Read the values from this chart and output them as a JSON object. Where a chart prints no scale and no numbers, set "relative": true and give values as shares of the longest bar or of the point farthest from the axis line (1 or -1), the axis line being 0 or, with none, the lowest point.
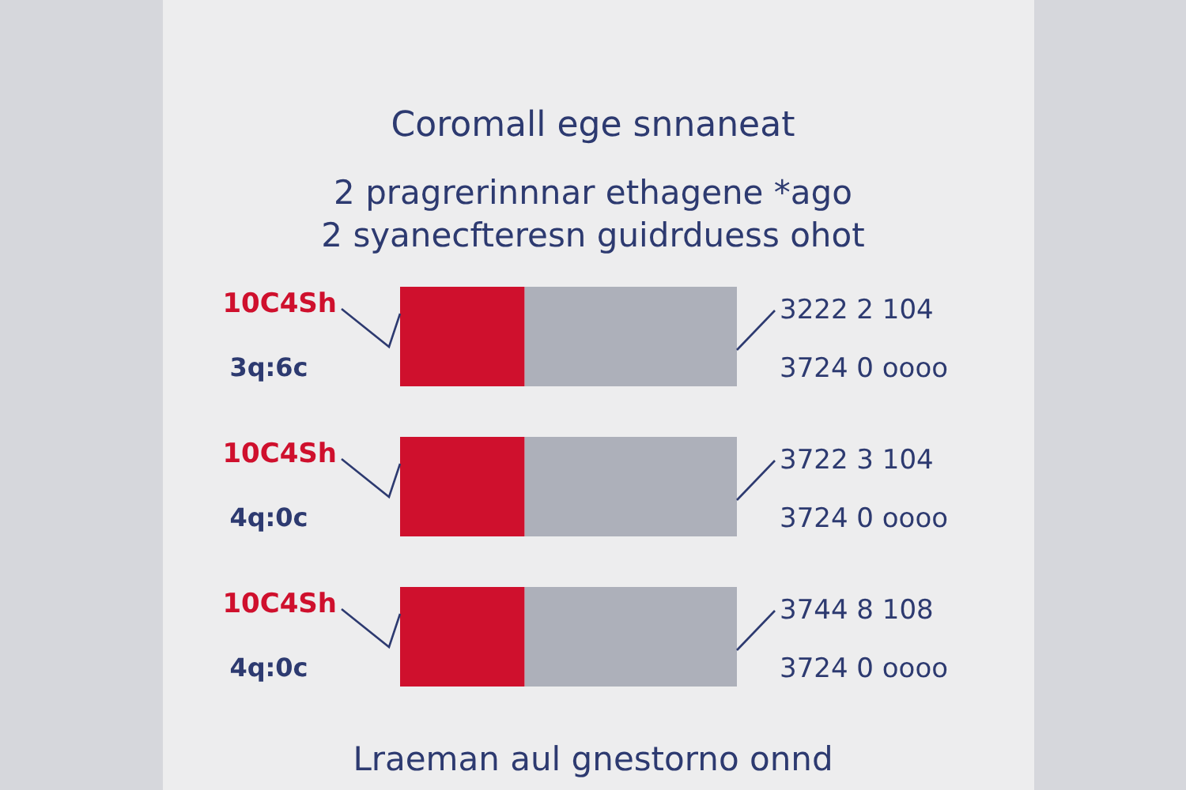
{
  "chart_data": {
    "type": "bar",
    "orientation": "horizontal",
    "stacked": true,
    "relative": true,
    "title": "Coromall ege snnaneat",
    "subtitle": "2 pragrerinnnar ethagene *ago\n2 syanecfteresn guidrduess ohot",
    "categories": [
      "3q:6c",
      "4q:0c",
      "4q:0c"
    ],
    "series": [
      {
        "color": "#cf102d",
        "values": [
          0.37,
          0.37,
          0.37
        ]
      },
      {
        "color": "#adb0ba",
        "values": [
          0.63,
          0.63,
          0.63
        ]
      }
    ],
    "annotations": [
      "10C4Sh",
      "3222 2 104\n3724 0 oooo",
      "10C4Sh",
      "3722 3 104\n3724 0 oooo",
      "10C4Sh",
      "3744 8 108\n3724 0 oooo",
      "Lraeman aul gnestorno onnd"
    ]
  }
}
